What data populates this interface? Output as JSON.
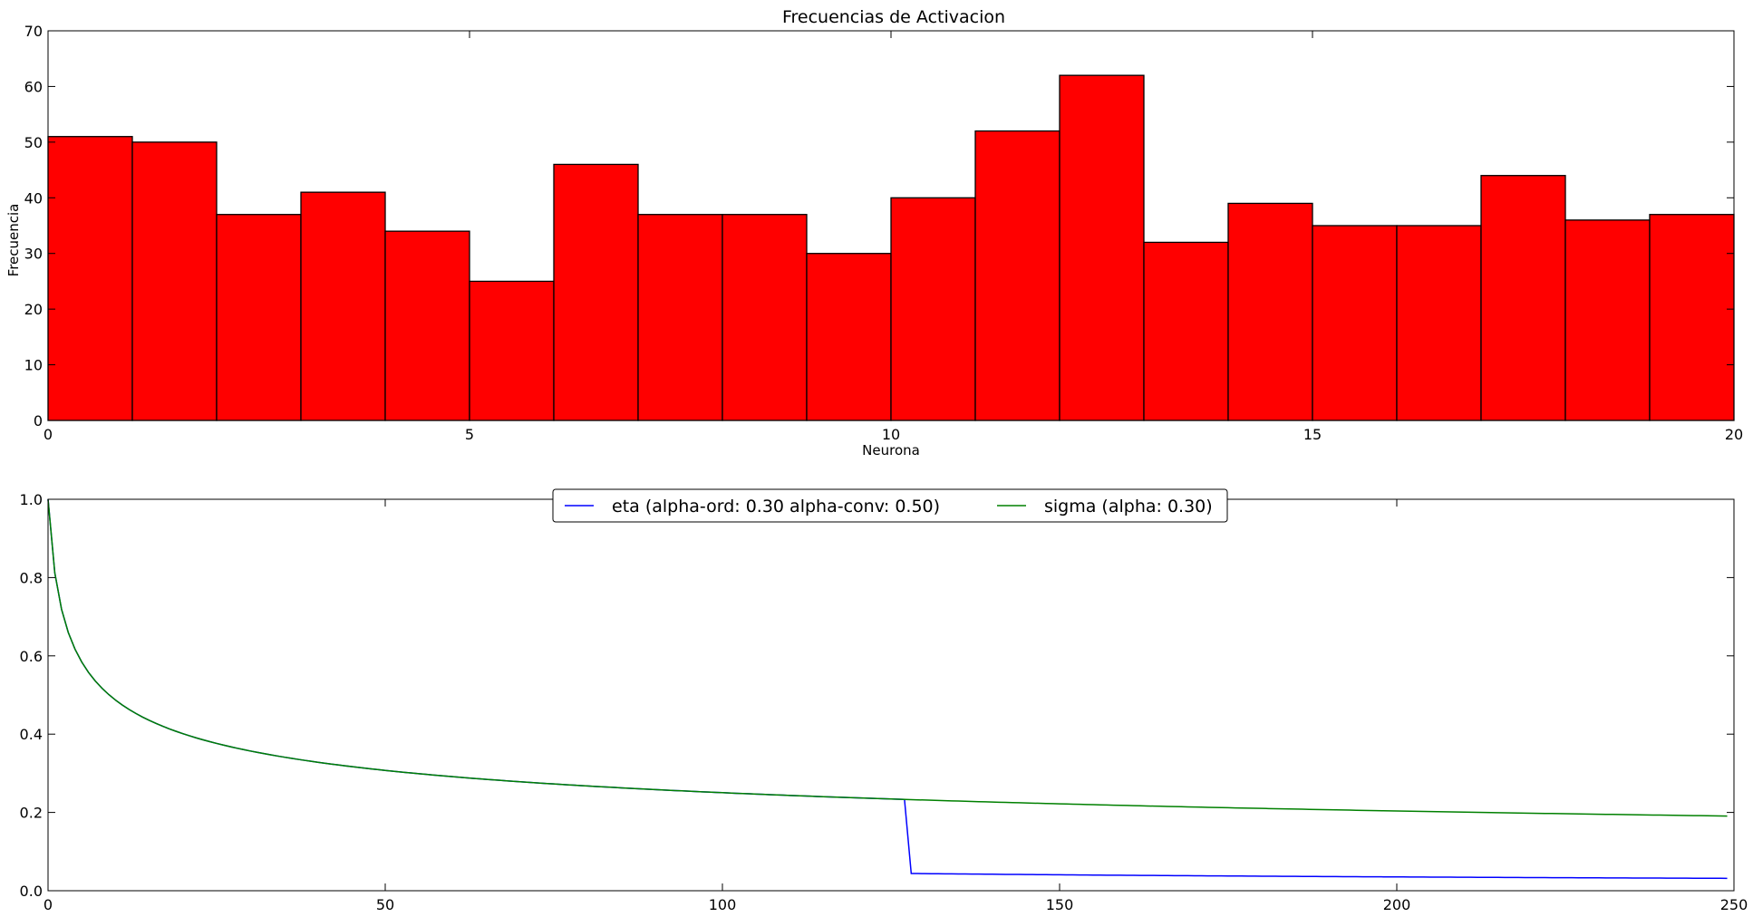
{
  "chart_data": [
    {
      "type": "bar",
      "title": "Frecuencias de Activacion",
      "xlabel": "Neurona",
      "ylabel": "Frecuencia",
      "xlim": [
        0,
        20
      ],
      "ylim": [
        0,
        70
      ],
      "xticks": [
        0,
        5,
        10,
        15,
        20
      ],
      "yticks": [
        0,
        10,
        20,
        30,
        40,
        50,
        60,
        70
      ],
      "bin_edges": [
        0,
        1,
        2,
        3,
        4,
        5,
        6,
        7,
        8,
        9,
        10,
        11,
        12,
        13,
        14,
        15,
        16,
        17,
        18,
        19,
        20
      ],
      "values": [
        51,
        50,
        37,
        41,
        34,
        25,
        46,
        37,
        37,
        30,
        40,
        52,
        62,
        32,
        39,
        35,
        35,
        44,
        36,
        37
      ],
      "bar_color": "#ff0000",
      "edge_color": "#000000",
      "grid": false
    },
    {
      "type": "line",
      "title": "",
      "xlabel": "",
      "ylabel": "",
      "xlim": [
        0,
        250
      ],
      "ylim": [
        0.0,
        1.0
      ],
      "xticks": [
        0,
        50,
        100,
        150,
        200,
        250
      ],
      "yticks": [
        "0.0",
        "0.2",
        "0.4",
        "0.6",
        "0.8",
        "1.0"
      ],
      "legend_position": "top-center",
      "grid": false,
      "series": [
        {
          "name": "eta (alpha-ord: 0.30 alpha-conv: 0.50)",
          "color": "#0000ff",
          "formula": "x<=127 ? (x+1)^-0.30 : 0.5*(x+1)^-0.50",
          "x": [
            0,
            1,
            2,
            5,
            10,
            20,
            50,
            100,
            127,
            128,
            150,
            200,
            249
          ],
          "y": [
            1.0,
            0.812,
            0.719,
            0.584,
            0.487,
            0.401,
            0.307,
            0.25,
            0.233,
            0.0441,
            0.0407,
            0.0353,
            0.0317
          ]
        },
        {
          "name": "sigma (alpha: 0.30)",
          "color": "#008000",
          "formula": "(x+1)^-0.30",
          "x": [
            0,
            1,
            2,
            5,
            10,
            20,
            50,
            100,
            127,
            150,
            200,
            249
          ],
          "y": [
            1.0,
            0.812,
            0.719,
            0.584,
            0.487,
            0.401,
            0.307,
            0.25,
            0.233,
            0.222,
            0.204,
            0.191
          ]
        }
      ]
    }
  ]
}
